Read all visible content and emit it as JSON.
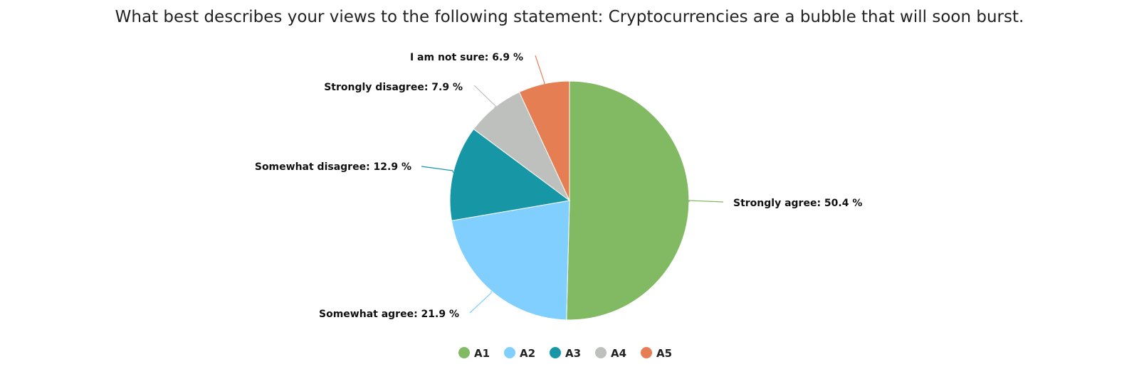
{
  "chart_data": {
    "type": "pie",
    "title": "What best describes your views to the following statement: Cryptocurrencies are a bubble that will soon burst.",
    "slices": [
      {
        "legend": "A1",
        "label": "Strongly agree",
        "value": 50.4,
        "display": "Strongly agree: 50.4 %",
        "color": "#82b963"
      },
      {
        "legend": "A2",
        "label": "Somewhat agree",
        "value": 21.9,
        "display": "Somewhat agree: 21.9 %",
        "color": "#80cfff"
      },
      {
        "legend": "A3",
        "label": "Somewhat disagree",
        "value": 12.9,
        "display": "Somewhat disagree: 12.9 %",
        "color": "#1797a6"
      },
      {
        "legend": "A4",
        "label": "Strongly disagree",
        "value": 7.9,
        "display": "Strongly disagree: 7.9 %",
        "color": "#bdc0bd"
      },
      {
        "legend": "A5",
        "label": "I am not sure",
        "value": 6.9,
        "display": "I am not sure: 6.9 %",
        "color": "#e67e54"
      }
    ],
    "start_angle": "12 o'clock",
    "direction": "clockwise",
    "legend_position": "bottom-center"
  }
}
